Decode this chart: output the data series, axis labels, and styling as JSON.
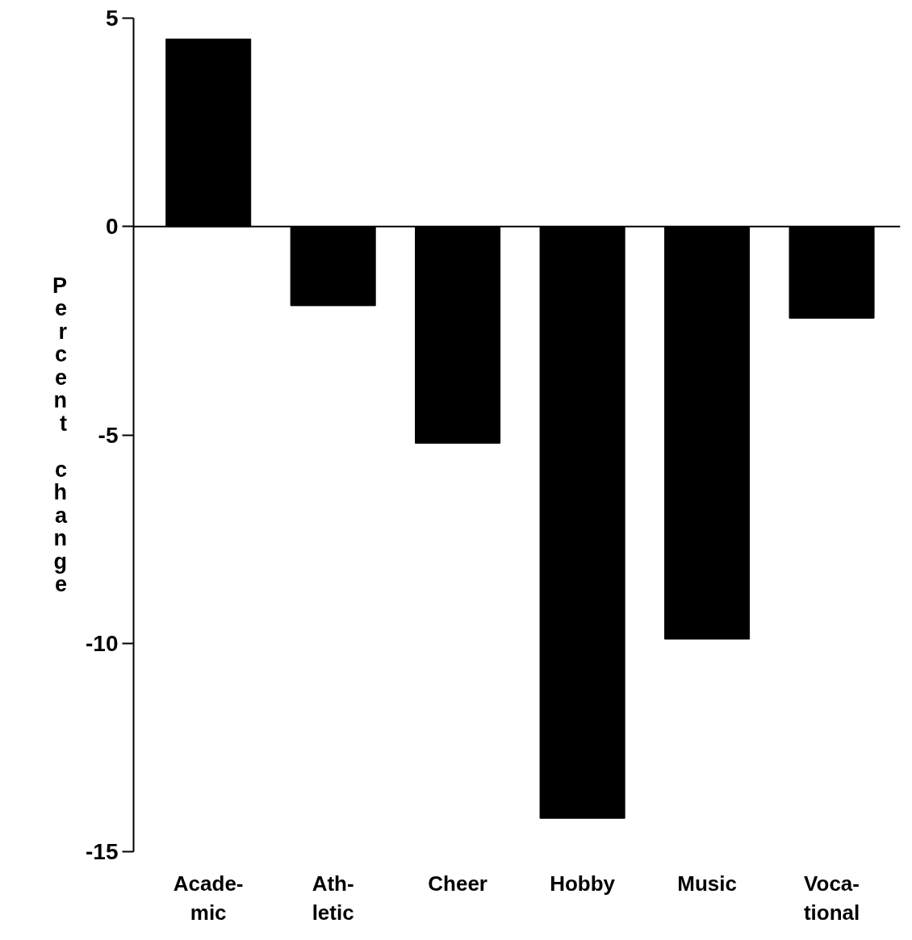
{
  "chart_data": {
    "type": "bar",
    "ylabel": "Percent change",
    "categories": [
      "Acade-\nmic",
      "Ath-\nletic",
      "Cheer",
      "Hobby",
      "Music",
      "Voca-\ntional"
    ],
    "values": [
      4.5,
      -1.9,
      -5.2,
      -14.2,
      -9.9,
      -2.2
    ],
    "color": "#000000",
    "ylim": [
      -15,
      5
    ],
    "yticks": [
      -15,
      -10,
      -5,
      0,
      5
    ],
    "grid": false,
    "ref_lines": [
      {
        "axis": "y",
        "value": 0,
        "color": "#000000",
        "line_style": "solid"
      }
    ]
  }
}
